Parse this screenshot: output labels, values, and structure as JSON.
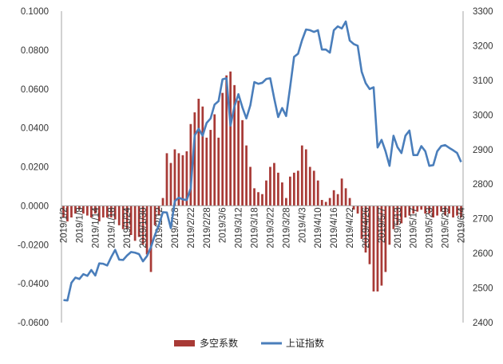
{
  "chart_data": {
    "type": "bar",
    "legend": {
      "placement": "bottom",
      "items": [
        {
          "name": "多空系数",
          "kind": "bar",
          "color": "#a83a36"
        },
        {
          "name": "上证指数",
          "kind": "line",
          "color": "#4a7ebb"
        }
      ]
    },
    "left_axis": {
      "ylim": [
        -0.06,
        0.1
      ],
      "ticks": [
        "0.1000",
        "0.0800",
        "0.0600",
        "0.0400",
        "0.0200",
        "0.0000",
        "-0.0200",
        "-0.0400",
        "-0.0600"
      ]
    },
    "right_axis": {
      "ylim": [
        2400,
        3300
      ],
      "ticks": [
        "3300",
        "3200",
        "3100",
        "3000",
        "2900",
        "2800",
        "2700",
        "2600",
        "2500",
        "2400"
      ]
    },
    "x_tick_labels": [
      "2019/1/2",
      "2019/1/8",
      "2019/1/14",
      "2019/1/18",
      "2019/1/24",
      "2019/1/30",
      "2019/2/12",
      "2019/2/18",
      "2019/2/22",
      "2019/2/28",
      "2019/3/6",
      "2019/3/12",
      "2019/3/18",
      "2019/3/22",
      "2019/3/28",
      "2019/4/3",
      "2019/4/10",
      "2019/4/16",
      "2019/4/22",
      "2019/4/26",
      "2019/5/7",
      "2019/5/13",
      "2019/5/17",
      "2019/5/23",
      "2019/5/29",
      "2019/6/4"
    ],
    "x_tick_positions": [
      0,
      4,
      8,
      12,
      16,
      20,
      24,
      28,
      32,
      36,
      40,
      44,
      48,
      52,
      56,
      60,
      64,
      68,
      72,
      76,
      80,
      84,
      88,
      92,
      96,
      100
    ],
    "series": [
      {
        "name": "多空系数",
        "kind": "bar",
        "axis": "left",
        "color": "#a83a36",
        "values": [
          -0.006,
          -0.008,
          -0.006,
          -0.004,
          -0.002,
          -0.004,
          -0.005,
          -0.006,
          -0.004,
          -0.008,
          -0.006,
          -0.006,
          -0.006,
          -0.007,
          -0.01,
          -0.012,
          -0.012,
          -0.015,
          -0.018,
          -0.016,
          -0.02,
          -0.025,
          -0.034,
          -0.01,
          -0.005,
          0.004,
          0.027,
          0.022,
          0.029,
          0.027,
          0.026,
          0.028,
          0.042,
          0.048,
          0.055,
          0.051,
          0.035,
          0.039,
          0.047,
          0.035,
          0.058,
          0.067,
          0.069,
          0.062,
          0.054,
          0.044,
          0.031,
          0.02,
          0.009,
          0.007,
          0.006,
          0.013,
          0.02,
          0.022,
          0.017,
          0.012,
          0.004,
          0.015,
          0.017,
          0.018,
          0.031,
          0.029,
          0.02,
          0.018,
          0.013,
          0.003,
          0.002,
          0.004,
          0.008,
          0.006,
          0.014,
          0.009,
          0.004,
          -0.002,
          -0.004,
          -0.017,
          -0.024,
          -0.03,
          -0.044,
          -0.044,
          -0.041,
          -0.034,
          -0.02,
          -0.012,
          -0.01,
          -0.009,
          -0.006,
          -0.005,
          -0.004,
          -0.003,
          -0.002,
          -0.004,
          -0.004,
          -0.006,
          -0.005,
          -0.003,
          -0.005,
          -0.004,
          -0.006,
          -0.005,
          -0.006
        ]
      },
      {
        "name": "上证指数",
        "kind": "line",
        "axis": "right",
        "color": "#4a7ebb",
        "values": [
          2465,
          2464,
          2515,
          2530,
          2526,
          2540,
          2535,
          2552,
          2536,
          2571,
          2570,
          2565,
          2589,
          2610,
          2582,
          2581,
          2594,
          2604,
          2602,
          2598,
          2577,
          2592,
          2618,
          2653,
          2682,
          2719,
          2718,
          2673,
          2751,
          2761,
          2756,
          2754,
          2788,
          2941,
          2960,
          2940,
          2977,
          2990,
          3030,
          3040,
          3103,
          3106,
          2969,
          3025,
          3060,
          3022,
          2990,
          3028,
          3095,
          3090,
          3093,
          3104,
          3106,
          3048,
          2994,
          3020,
          2997,
          3080,
          3168,
          3177,
          3216,
          3247,
          3245,
          3240,
          3245,
          3189,
          3189,
          3180,
          3245,
          3256,
          3250,
          3270,
          3215,
          3205,
          3200,
          3125,
          3092,
          3075,
          3080,
          2906,
          2928,
          2895,
          2853,
          2940,
          2907,
          2890,
          2940,
          2955,
          2884,
          2884,
          2910,
          2895,
          2853,
          2855,
          2895,
          2910,
          2913,
          2905,
          2898,
          2890,
          2864
        ]
      }
    ]
  }
}
